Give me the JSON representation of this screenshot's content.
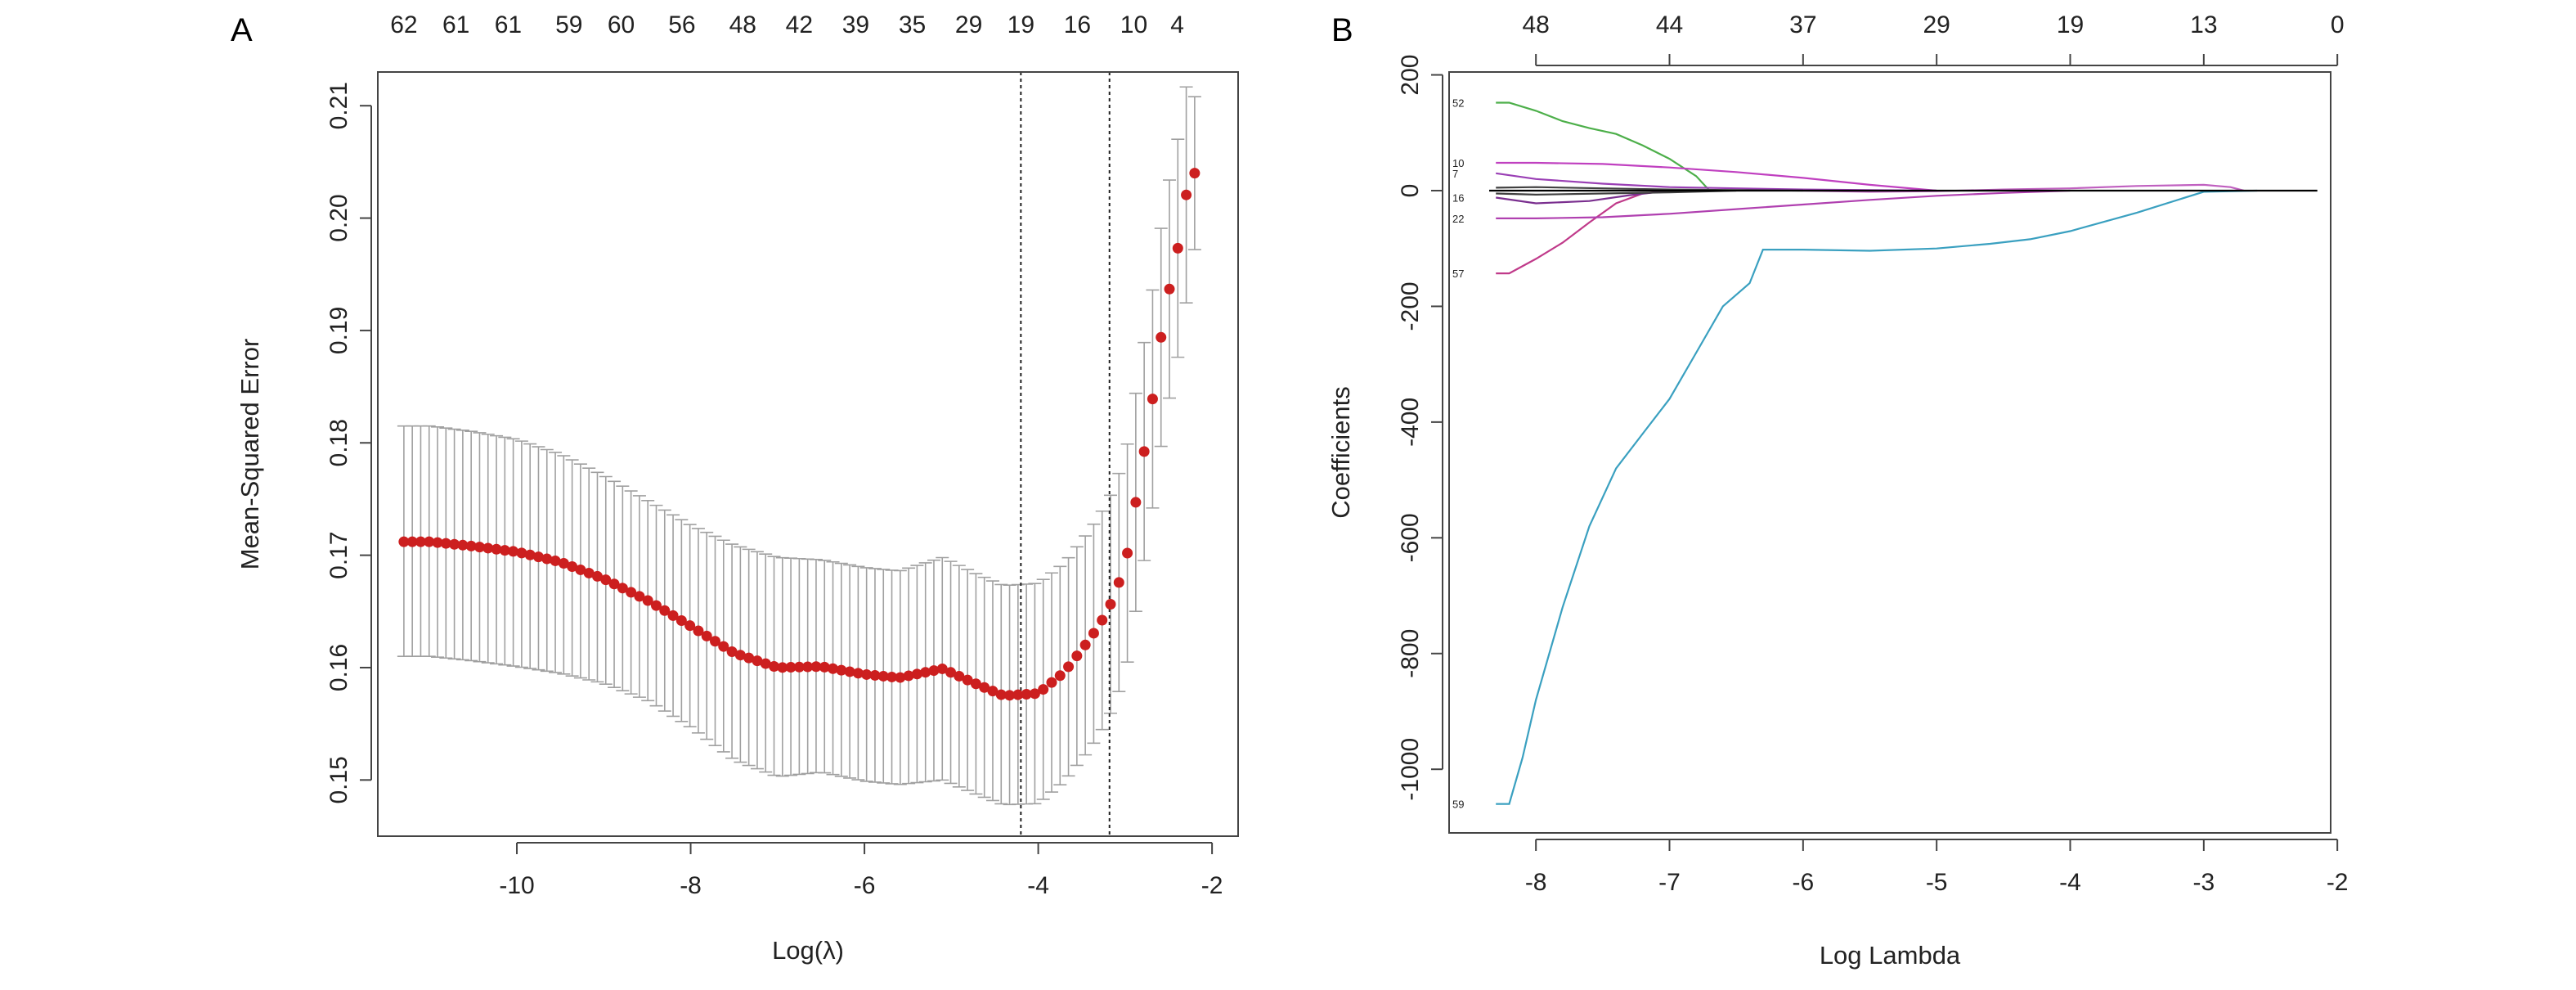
{
  "figure": {
    "panel_a_letter": "A",
    "panel_b_letter": "B"
  },
  "chart_data": [
    {
      "type": "scatter",
      "panel": "A",
      "title": "",
      "xlabel": "Log(λ)",
      "ylabel": "Mean-Squared Error",
      "xlim": [
        -11.6,
        -1.7
      ],
      "ylim": [
        0.145,
        0.213
      ],
      "x_ticks": [
        -10,
        -8,
        -6,
        -4,
        -2
      ],
      "x_tick_labels": [
        "-10",
        "-8",
        "-6",
        "-4",
        "-2"
      ],
      "y_ticks": [
        0.15,
        0.16,
        0.17,
        0.18,
        0.19,
        0.2,
        0.21
      ],
      "y_tick_labels": [
        "0.15",
        "0.16",
        "0.17",
        "0.18",
        "0.19",
        "0.20",
        "0.21"
      ],
      "top_axis_positions": [
        -11.3,
        -10.7,
        -10.1,
        -9.4,
        -8.8,
        -8.1,
        -7.4,
        -6.75,
        -6.1,
        -5.45,
        -4.8,
        -4.2,
        -3.55,
        -2.9,
        -2.4
      ],
      "top_axis_labels": [
        "62",
        "61",
        "61",
        "59",
        "60",
        "56",
        "48",
        "42",
        "39",
        "35",
        "29",
        "19",
        "16",
        "10",
        "4"
      ],
      "vlines": [
        -4.2,
        -3.18
      ],
      "grid": false,
      "point_color": "#cc1f1f",
      "errorbar_color": "#a0a0a0",
      "series": [
        {
          "x": [
            -11.3,
            -11.0,
            -10.5,
            -10.0,
            -9.5,
            -9.0,
            -8.5,
            -8.0,
            -7.5,
            -7.0,
            -6.5,
            -6.0,
            -5.6,
            -5.1,
            -4.7,
            -4.4,
            -4.0,
            -3.7,
            -3.4,
            -3.2,
            -3.0,
            -2.85,
            -2.7,
            -2.55,
            -2.4,
            -2.3,
            -2.2
          ],
          "y": [
            0.1712,
            0.1712,
            0.1708,
            0.1703,
            0.1694,
            0.1679,
            0.166,
            0.1637,
            0.1613,
            0.16,
            0.1601,
            0.1594,
            0.1591,
            0.1599,
            0.1585,
            0.1575,
            0.1577,
            0.1596,
            0.1626,
            0.165,
            0.169,
            0.176,
            0.183,
            0.1915,
            0.197,
            0.202,
            0.204
          ],
          "y_upper": [
            0.1815,
            0.1815,
            0.181,
            0.1803,
            0.179,
            0.1771,
            0.1749,
            0.1727,
            0.1709,
            0.1698,
            0.1696,
            0.1689,
            0.1686,
            0.1698,
            0.1683,
            0.1673,
            0.1675,
            0.1693,
            0.1723,
            0.1747,
            0.1787,
            0.1857,
            0.1927,
            0.2012,
            0.2067,
            0.2117,
            0.2108
          ],
          "y_lower": [
            0.161,
            0.161,
            0.1606,
            0.1601,
            0.1595,
            0.1586,
            0.1571,
            0.1547,
            0.1518,
            0.1503,
            0.1507,
            0.1499,
            0.1496,
            0.15,
            0.1487,
            0.1478,
            0.1479,
            0.1499,
            0.1528,
            0.1553,
            0.1593,
            0.1663,
            0.1733,
            0.1818,
            0.1873,
            0.1923,
            0.1972
          ]
        }
      ]
    },
    {
      "type": "line",
      "panel": "B",
      "title": "",
      "xlabel": "Log Lambda",
      "ylabel": "Coefficients",
      "xlim": [
        -8.65,
        -2.05
      ],
      "ylim": [
        -1110,
        205
      ],
      "x_ticks": [
        -8,
        -7,
        -6,
        -5,
        -4,
        -3,
        -2
      ],
      "x_tick_labels": [
        "-8",
        "-7",
        "-6",
        "-5",
        "-4",
        "-3",
        "-2"
      ],
      "y_ticks": [
        -1000,
        -800,
        -600,
        -400,
        -200,
        0,
        200
      ],
      "y_tick_labels": [
        "-1000",
        "-800",
        "-600",
        "-400",
        "-200",
        "0",
        "200"
      ],
      "top_axis_positions": [
        -8,
        -7,
        -6,
        -5,
        -4,
        -3,
        -2
      ],
      "top_axis_labels": [
        "48",
        "44",
        "37",
        "29",
        "19",
        "13",
        "0"
      ],
      "grid": false,
      "left_path_labels": [
        {
          "text": "52",
          "y": 152
        },
        {
          "text": "10",
          "y": 48
        },
        {
          "text": "7",
          "y": 30
        },
        {
          "text": "16",
          "y": -12
        },
        {
          "text": "22",
          "y": -48
        },
        {
          "text": "57",
          "y": -143
        },
        {
          "text": "59",
          "y": -1060
        }
      ],
      "series": [
        {
          "color": "#4daf4a",
          "x": [
            -8.3,
            -8.2,
            -8.0,
            -7.8,
            -7.6,
            -7.4,
            -7.2,
            -7.0,
            -6.8,
            -6.7
          ],
          "y": [
            152,
            152,
            138,
            120,
            108,
            98,
            78,
            55,
            25,
            0
          ]
        },
        {
          "color": "#3aa0c0",
          "x": [
            -8.3,
            -8.2,
            -8.1,
            -8.0,
            -7.8,
            -7.6,
            -7.4,
            -7.2,
            -7.0,
            -6.8,
            -6.6,
            -6.4,
            -6.3,
            -6.0,
            -5.5,
            -5.0,
            -4.6,
            -4.3,
            -4.0,
            -3.5,
            -3.0,
            -2.6
          ],
          "y": [
            -1060,
            -1060,
            -980,
            -880,
            -720,
            -580,
            -480,
            -420,
            -360,
            -280,
            -200,
            -160,
            -102,
            -102,
            -104,
            -100,
            -92,
            -84,
            -70,
            -38,
            -2,
            0
          ]
        },
        {
          "color": "#c03a8a",
          "x": [
            -8.3,
            -8.2,
            -8.0,
            -7.8,
            -7.6,
            -7.4,
            -7.2,
            -7.0
          ],
          "y": [
            -143,
            -143,
            -118,
            -90,
            -55,
            -22,
            -5,
            0
          ]
        },
        {
          "color": "#c040c0",
          "x": [
            -8.3,
            -8.0,
            -7.5,
            -7.0,
            -6.5,
            -6.0,
            -5.5,
            -5.0
          ],
          "y": [
            48,
            48,
            46,
            40,
            32,
            22,
            10,
            0
          ]
        },
        {
          "color": "#9a3fb5",
          "x": [
            -8.3,
            -8.0,
            -7.5,
            -7.0,
            -6.5,
            -6.0,
            -5.5,
            -5.0
          ],
          "y": [
            30,
            20,
            12,
            6,
            4,
            2,
            1,
            0
          ]
        },
        {
          "color": "#b040b0",
          "x": [
            -8.3,
            -8.0,
            -7.5,
            -7.0,
            -6.5,
            -6.0,
            -5.5,
            -5.0,
            -4.5,
            -4.0
          ],
          "y": [
            -48,
            -48,
            -46,
            -40,
            -32,
            -24,
            -16,
            -9,
            -4,
            0
          ]
        },
        {
          "color": "#7a2f8f",
          "x": [
            -8.3,
            -8.0,
            -7.6,
            -7.3,
            -7.0
          ],
          "y": [
            -12,
            -22,
            -18,
            -8,
            0
          ]
        },
        {
          "color": "#c060c0",
          "x": [
            -6.0,
            -5.5,
            -5.0,
            -4.5,
            -4.0,
            -3.5,
            -3.0,
            -2.8,
            -2.7
          ],
          "y": [
            0,
            -2,
            -1,
            2,
            4,
            8,
            10,
            6,
            0
          ]
        },
        {
          "color": "#404040",
          "x": [
            -8.3,
            -8.0,
            -7.5,
            -7.0,
            -6.5,
            -6.0
          ],
          "y": [
            5,
            6,
            4,
            2,
            1,
            0
          ]
        },
        {
          "color": "#404040",
          "x": [
            -8.3,
            -8.0,
            -7.5,
            -7.0,
            -6.5
          ],
          "y": [
            -5,
            -7,
            -5,
            -3,
            0
          ]
        },
        {
          "color": "#000000",
          "x": [
            -8.35,
            -2.15
          ],
          "y": [
            0,
            0
          ]
        }
      ]
    }
  ]
}
